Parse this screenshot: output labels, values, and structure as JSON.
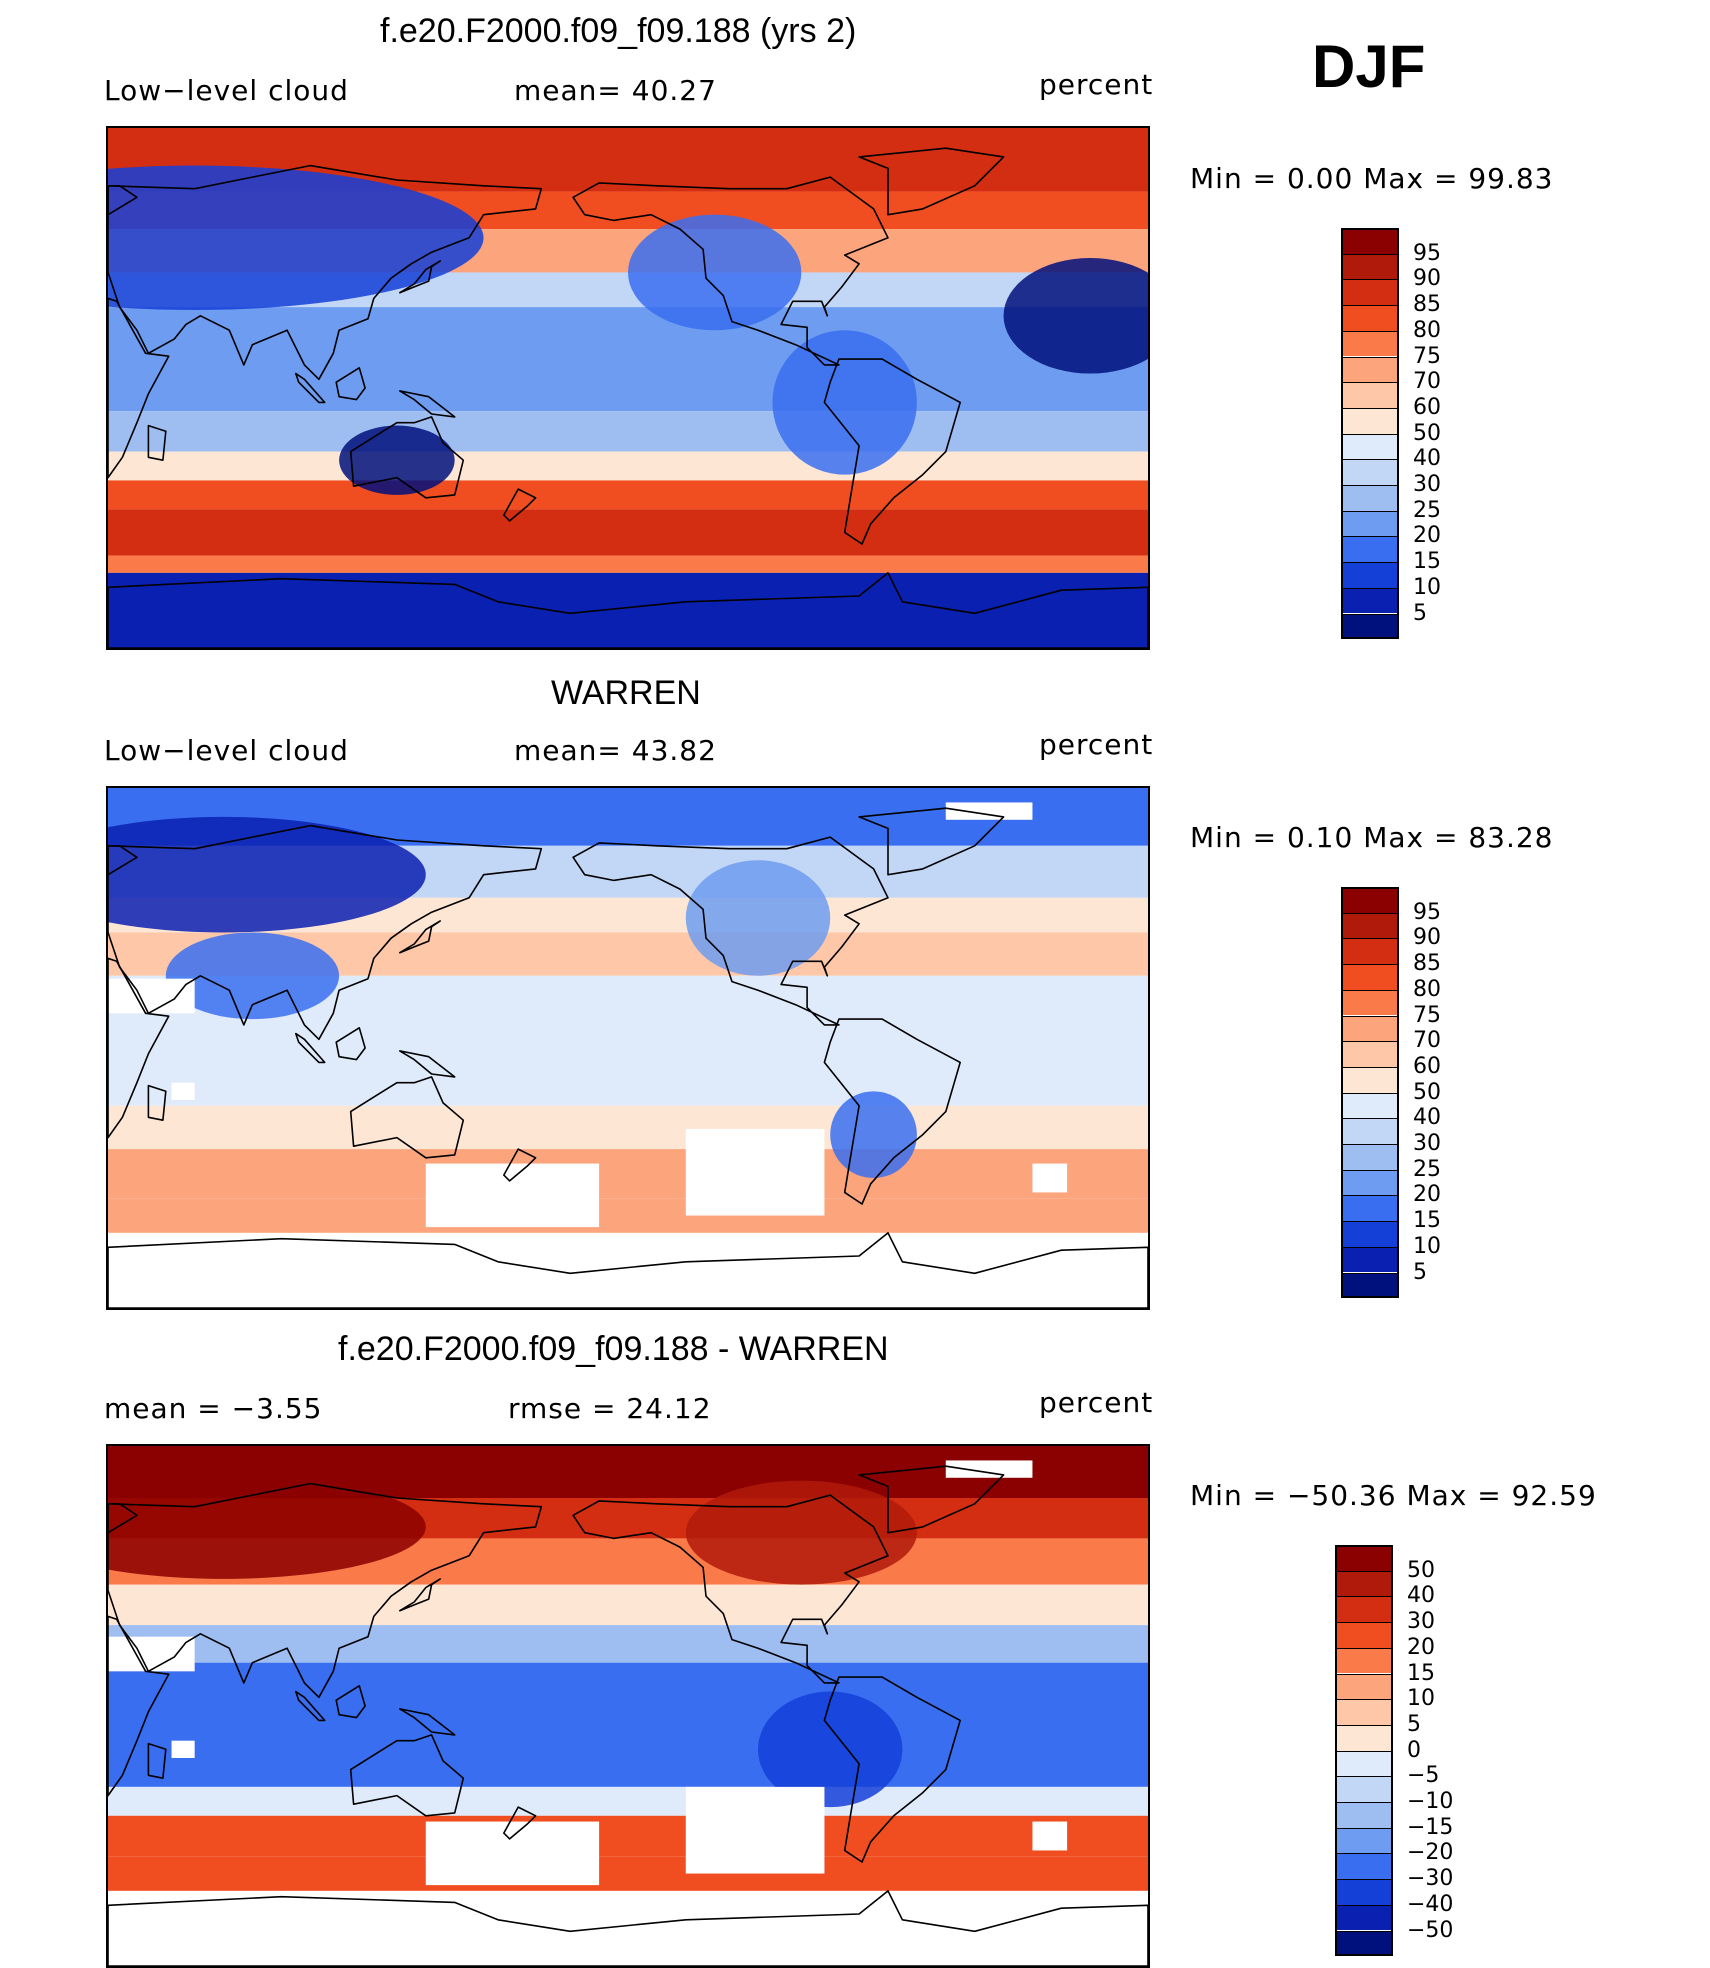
{
  "season": "DJF",
  "panels": [
    {
      "title": "f.e20.F2000.f09_f09.188 (yrs 2)",
      "left_label": "Low−level cloud",
      "center_label": "mean=  40.27",
      "right_label": "percent",
      "minmax": "Min  =    0.00  Max  =   99.83",
      "map_kind": "model"
    },
    {
      "title": "WARREN",
      "left_label": "Low−level cloud",
      "center_label": "mean=  43.82",
      "right_label": "percent",
      "minmax": "Min  =    0.10  Max  =   83.28",
      "map_kind": "obs"
    },
    {
      "title": "f.e20.F2000.f09_f09.188 - WARREN",
      "left_label": "mean  =   −3.55",
      "center_label": "rmse  =   24.12",
      "right_label": "percent",
      "minmax": "Min  = −50.36  Max  =   92.59",
      "map_kind": "diff"
    }
  ],
  "colorbars": [
    {
      "labels": [
        "95",
        "90",
        "85",
        "80",
        "75",
        "70",
        "60",
        "50",
        "40",
        "30",
        "25",
        "20",
        "15",
        "10",
        "5"
      ],
      "colors": [
        "#8b0000",
        "#b01a0a",
        "#d42e12",
        "#f04e20",
        "#fb7a4a",
        "#fca47c",
        "#fdc7a8",
        "#fde6d4",
        "#dfeafa",
        "#c2d6f6",
        "#9ebef2",
        "#6e9cf0",
        "#3a6ef0",
        "#1440d8",
        "#0a20b0",
        "#00107c"
      ]
    },
    {
      "labels": [
        "95",
        "90",
        "85",
        "80",
        "75",
        "70",
        "60",
        "50",
        "40",
        "30",
        "25",
        "20",
        "15",
        "10",
        "5"
      ],
      "colors": [
        "#8b0000",
        "#b01a0a",
        "#d42e12",
        "#f04e20",
        "#fb7a4a",
        "#fca47c",
        "#fdc7a8",
        "#fde6d4",
        "#dfeafa",
        "#c2d6f6",
        "#9ebef2",
        "#6e9cf0",
        "#3a6ef0",
        "#1440d8",
        "#0a20b0",
        "#00107c"
      ]
    },
    {
      "labels": [
        "50",
        "40",
        "30",
        "20",
        "15",
        "10",
        "5",
        "0",
        "−5",
        "−10",
        "−15",
        "−20",
        "−30",
        "−40",
        "−50"
      ],
      "colors": [
        "#8b0000",
        "#b01a0a",
        "#d42e12",
        "#f04e20",
        "#fb7a4a",
        "#fca47c",
        "#fdc7a8",
        "#fde6d4",
        "#dfeafa",
        "#c2d6f6",
        "#9ebef2",
        "#6e9cf0",
        "#3a6ef0",
        "#1440d8",
        "#0a20b0",
        "#00107c"
      ]
    }
  ]
}
